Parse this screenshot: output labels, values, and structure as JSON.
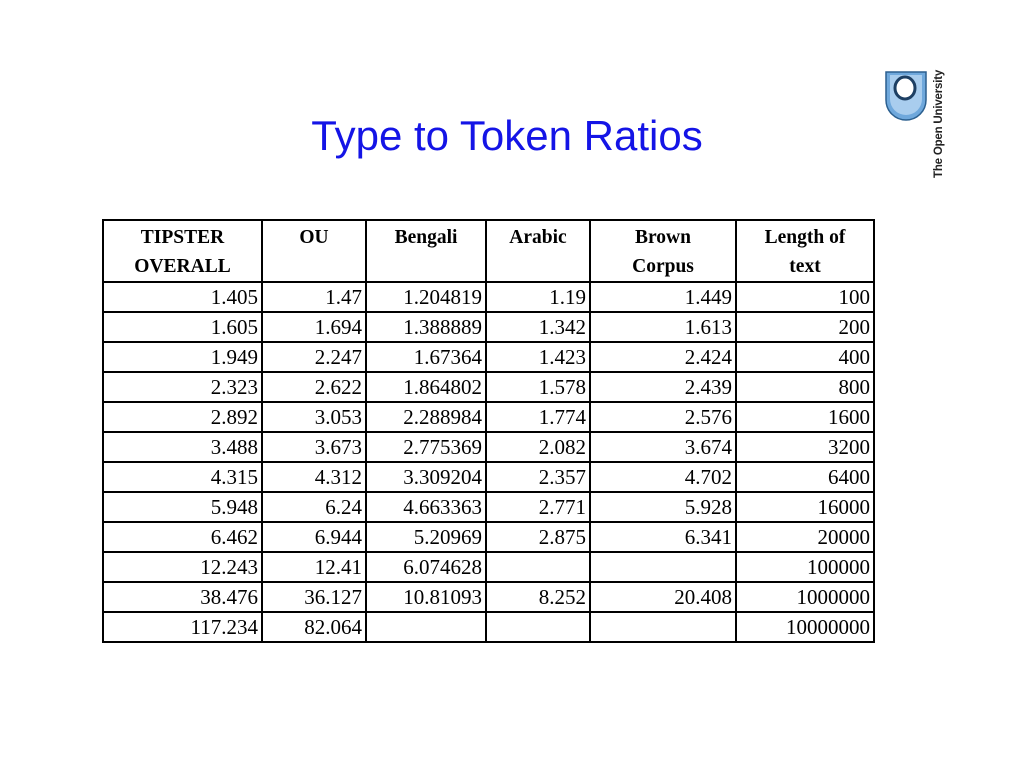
{
  "slide": {
    "title": "Type to Token Ratios"
  },
  "logo": {
    "text": "The Open University"
  },
  "table": {
    "columns": [
      [
        "TIPSTER",
        "OVERALL"
      ],
      [
        "OU",
        ""
      ],
      [
        "Bengali",
        ""
      ],
      [
        "Arabic",
        ""
      ],
      [
        "Brown",
        "Corpus"
      ],
      [
        "Length of",
        "text"
      ]
    ],
    "rows": [
      [
        "1.405",
        "1.47",
        "1.204819",
        "1.19",
        "1.449",
        "100"
      ],
      [
        "1.605",
        "1.694",
        "1.388889",
        "1.342",
        "1.613",
        "200"
      ],
      [
        "1.949",
        "2.247",
        "1.67364",
        "1.423",
        "2.424",
        "400"
      ],
      [
        "2.323",
        "2.622",
        "1.864802",
        "1.578",
        "2.439",
        "800"
      ],
      [
        "2.892",
        "3.053",
        "2.288984",
        "1.774",
        "2.576",
        "1600"
      ],
      [
        "3.488",
        "3.673",
        "2.775369",
        "2.082",
        "3.674",
        "3200"
      ],
      [
        "4.315",
        "4.312",
        "3.309204",
        "2.357",
        "4.702",
        "6400"
      ],
      [
        "5.948",
        "6.24",
        "4.663363",
        "2.771",
        "5.928",
        "16000"
      ],
      [
        "6.462",
        "6.944",
        "5.20969",
        "2.875",
        "6.341",
        "20000"
      ],
      [
        "12.243",
        "12.41",
        "6.074628",
        "",
        "",
        "100000"
      ],
      [
        "38.476",
        "36.127",
        "10.81093",
        "8.252",
        "20.408",
        "1000000"
      ],
      [
        "117.234",
        "82.064",
        "",
        "",
        "",
        "10000000"
      ]
    ]
  },
  "colors": {
    "title": "#1414e6",
    "logo_blue": "#6fa8dc"
  }
}
